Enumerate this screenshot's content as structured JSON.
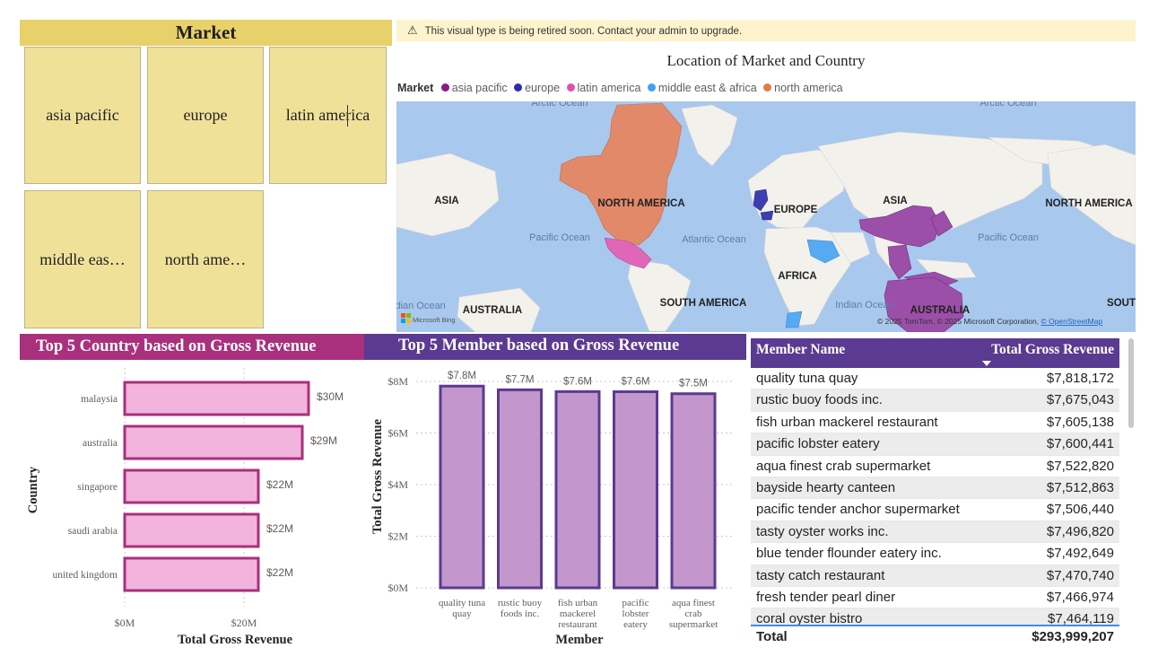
{
  "market_slicer": {
    "title": "Market",
    "items": [
      "asia pacific",
      "europe",
      "latin america",
      "middle eas…",
      "north ame…"
    ]
  },
  "warning": {
    "icon": "warning-icon",
    "text": "This visual type is being retired soon. Contact your admin to upgrade."
  },
  "map": {
    "title": "Location of Market and Country",
    "legend_title": "Market",
    "legend": [
      {
        "name": "asia pacific",
        "color": "#8a1a8a"
      },
      {
        "name": "europe",
        "color": "#2a2fa8"
      },
      {
        "name": "latin america",
        "color": "#e04fb0"
      },
      {
        "name": "middle east & africa",
        "color": "#3ea0f5"
      },
      {
        "name": "north america",
        "color": "#e57a48"
      }
    ],
    "ocean_labels": [
      "Arctic Ocean",
      "Arctic Ocean",
      "Pacific Ocean",
      "Atlantic Ocean",
      "Pacific Ocean",
      "Indian Ocean",
      "Indian Ocean"
    ],
    "continent_labels": [
      "ASIA",
      "NORTH AMERICA",
      "EUROPE",
      "ASIA",
      "NORTH AMERICA",
      "AFRICA",
      "SOUTH AMERICA",
      "AUSTRALIA",
      "AUSTRALIA",
      "SOUT"
    ],
    "logo": "Microsoft Bing",
    "attribution_prefix": "© 2025 TomTom, © 2025 Microsoft Corporation, ",
    "attribution_link": "© OpenStreetMap"
  },
  "country_chart": {
    "title": "Top 5 Country based on Gross Revenue",
    "chart_data": {
      "type": "bar",
      "orientation": "horizontal",
      "categories": [
        "malaysia",
        "australia",
        "singapore",
        "saudi arabia",
        "united kingdom"
      ],
      "values": [
        30,
        29,
        22,
        22,
        22
      ],
      "data_labels": [
        "$30M",
        "$29M",
        "$22M",
        "$22M",
        "$22M"
      ],
      "xlabel": "Total Gross Revenue",
      "ylabel": "Country",
      "x_ticks": [
        "$0M",
        "$20M"
      ],
      "x_tick_values": [
        0,
        20
      ],
      "xlim": [
        0,
        30
      ],
      "bar_fill": "#f2b3dc",
      "bar_stroke": "#a8307c"
    }
  },
  "member_chart": {
    "title": "Top 5 Member based on Gross Revenue",
    "chart_data": {
      "type": "bar",
      "categories": [
        [
          "quality tuna",
          "quay"
        ],
        [
          "rustic buoy",
          "foods inc."
        ],
        [
          "fish urban",
          "mackerel",
          "restaurant"
        ],
        [
          "pacific",
          "lobster",
          "eatery"
        ],
        [
          "aqua finest",
          "crab",
          "supermarket"
        ]
      ],
      "values": [
        7.818,
        7.675,
        7.605,
        7.6,
        7.523
      ],
      "data_labels": [
        "$7.8M",
        "$7.7M",
        "$7.6M",
        "$7.6M",
        "$7.5M"
      ],
      "xlabel": "Member",
      "ylabel": "Total Gross Revenue",
      "y_ticks": [
        "$0M",
        "$2M",
        "$4M",
        "$6M",
        "$8M"
      ],
      "y_tick_values": [
        0,
        2,
        4,
        6,
        8
      ],
      "ylim": [
        0,
        8
      ],
      "bar_fill": "#c497cc",
      "bar_stroke": "#5b3a91"
    }
  },
  "member_table": {
    "headers": [
      "Member Name",
      "Total Gross Revenue"
    ],
    "rows": [
      [
        "quality tuna quay",
        "$7,818,172"
      ],
      [
        "rustic buoy foods inc.",
        "$7,675,043"
      ],
      [
        "fish urban mackerel restaurant",
        "$7,605,138"
      ],
      [
        "pacific lobster eatery",
        "$7,600,441"
      ],
      [
        "aqua finest crab supermarket",
        "$7,522,820"
      ],
      [
        "bayside hearty canteen",
        "$7,512,863"
      ],
      [
        "pacific tender anchor supermarket",
        "$7,506,440"
      ],
      [
        "tasty oyster works inc.",
        "$7,496,820"
      ],
      [
        "blue tender flounder eatery inc.",
        "$7,492,649"
      ],
      [
        "tasty catch restaurant",
        "$7,470,740"
      ],
      [
        "fresh tender pearl diner",
        "$7,466,974"
      ],
      [
        "coral oyster bistro",
        "$7,464,119"
      ]
    ],
    "total_label": "Total",
    "total_value": "$293,999,207"
  }
}
